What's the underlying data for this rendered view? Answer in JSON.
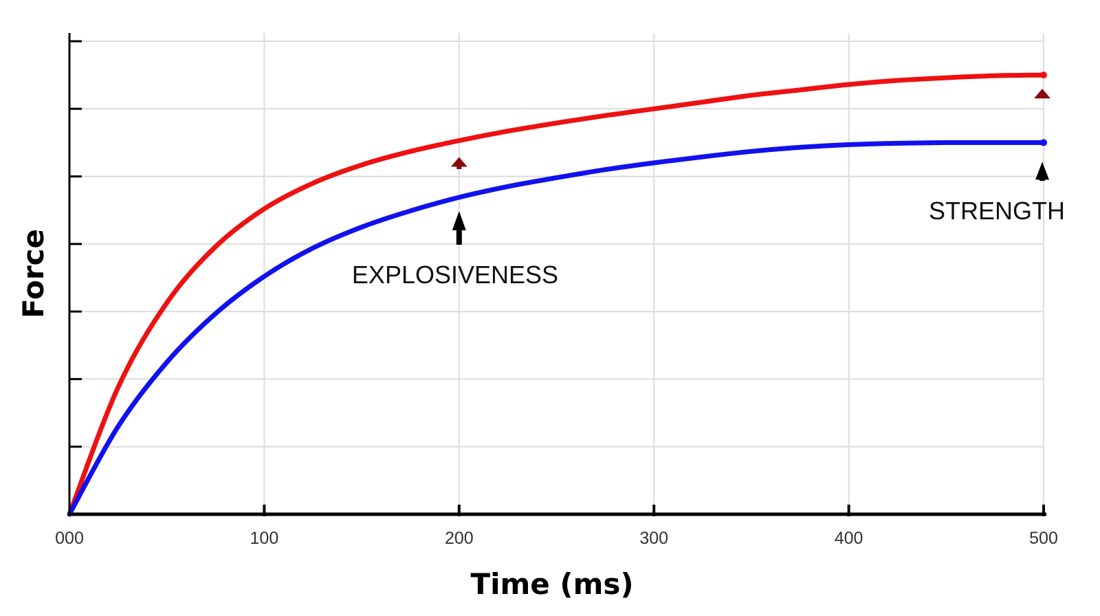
{
  "chart_data": {
    "type": "line",
    "title": "",
    "xlabel": "Time (ms)",
    "ylabel": "Force",
    "xlim": [
      0,
      500
    ],
    "ylim": [
      0,
      7
    ],
    "x_ticks": [
      0,
      100,
      200,
      300,
      400,
      500
    ],
    "x_tick_labels": [
      "000",
      "100",
      "200",
      "300",
      "400",
      "500"
    ],
    "y_ticks": [
      1,
      2,
      3,
      4,
      5,
      6,
      7
    ],
    "grid": true,
    "legend": "none",
    "series": [
      {
        "color": "#ee1111",
        "x": [
          0,
          25,
          50,
          75,
          100,
          125,
          150,
          175,
          200,
          225,
          250,
          275,
          300,
          325,
          350,
          375,
          400,
          425,
          450,
          475,
          500
        ],
        "values": [
          0,
          1.88,
          3.13,
          3.96,
          4.52,
          4.9,
          5.17,
          5.37,
          5.53,
          5.67,
          5.79,
          5.9,
          6,
          6.1,
          6.2,
          6.28,
          6.36,
          6.42,
          6.46,
          6.49,
          6.5
        ]
      },
      {
        "color": "#1111ee",
        "x": [
          0,
          25,
          50,
          75,
          100,
          125,
          150,
          175,
          200,
          225,
          250,
          275,
          300,
          325,
          350,
          375,
          400,
          425,
          450,
          475,
          500
        ],
        "values": [
          0,
          1.3,
          2.25,
          2.97,
          3.52,
          3.94,
          4.25,
          4.49,
          4.69,
          4.85,
          4.98,
          5.1,
          5.2,
          5.29,
          5.37,
          5.43,
          5.47,
          5.49,
          5.5,
          5.5,
          5.5
        ]
      }
    ],
    "annotations": [
      {
        "text": "EXPLOSIVENESS",
        "x": 200
      },
      {
        "text": "STRENGTH",
        "x": 500
      }
    ],
    "annotation_arrow_color": "#000000",
    "gain_arrow_color": "#8b0a0a"
  }
}
